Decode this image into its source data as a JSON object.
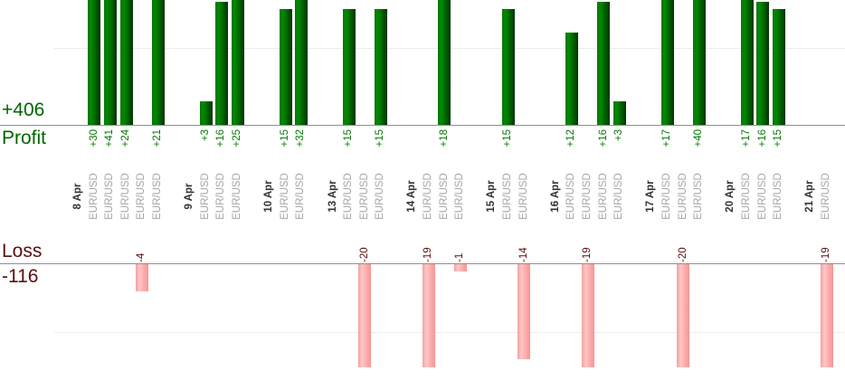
{
  "page": {
    "profit_total": "+406",
    "profit_axis_title": "Profit",
    "loss_axis_title": "Loss",
    "loss_total": "-116"
  },
  "chart_data": {
    "type": "bar",
    "title": "",
    "description": "Per-trade results grouped by date: profit bars (green) grow up from the Profit axis, loss bars (pink) grow down from the Loss axis",
    "symbol_label": "EUR/USD",
    "legend": "none",
    "grid": "faint horizontal gridline at value 10 in each panel",
    "profit_panel": {
      "axis_label": "Profit",
      "total": 406,
      "total_label": "+406",
      "bar_color_hex": "#006f00",
      "text_color_hex": "#007a00"
    },
    "loss_panel": {
      "axis_label": "Loss",
      "total": -116,
      "total_label": "-116",
      "bar_color_hex": "#f9a8a8",
      "text_color_hex": "#5a0f0f"
    },
    "categories": [
      "8 Apr",
      "9 Apr",
      "10 Apr",
      "13 Apr",
      "14 Apr",
      "15 Apr",
      "16 Apr",
      "17 Apr",
      "20 Apr",
      "21 Apr"
    ],
    "groups": [
      {
        "date": "8 Apr",
        "trades": [
          {
            "symbol": "EUR/USD",
            "value": 30,
            "label": "+30"
          },
          {
            "symbol": "EUR/USD",
            "value": 41,
            "label": "+41"
          },
          {
            "symbol": "EUR/USD",
            "value": 24,
            "label": "+24"
          },
          {
            "symbol": "EUR/USD",
            "value": -4,
            "label": "-4"
          },
          {
            "symbol": "EUR/USD",
            "value": 21,
            "label": "+21"
          }
        ]
      },
      {
        "date": "9 Apr",
        "trades": [
          {
            "symbol": "EUR/USD",
            "value": 3,
            "label": "+3"
          },
          {
            "symbol": "EUR/USD",
            "value": 16,
            "label": "+16"
          },
          {
            "symbol": "EUR/USD",
            "value": 25,
            "label": "+25"
          }
        ]
      },
      {
        "date": "10 Apr",
        "trades": [
          {
            "symbol": "EUR/USD",
            "value": 15,
            "label": "+15"
          },
          {
            "symbol": "EUR/USD",
            "value": 32,
            "label": "+32"
          }
        ]
      },
      {
        "date": "13 Apr",
        "trades": [
          {
            "symbol": "EUR/USD",
            "value": 15,
            "label": "+15"
          },
          {
            "symbol": "EUR/USD",
            "value": -20,
            "label": "-20"
          },
          {
            "symbol": "EUR/USD",
            "value": 15,
            "label": "+15"
          }
        ]
      },
      {
        "date": "14 Apr",
        "trades": [
          {
            "symbol": "EUR/USD",
            "value": -19,
            "label": "-19"
          },
          {
            "symbol": "EUR/USD",
            "value": 18,
            "label": "+18"
          },
          {
            "symbol": "EUR/USD",
            "value": -1,
            "label": "-1"
          }
        ]
      },
      {
        "date": "15 Apr",
        "trades": [
          {
            "symbol": "EUR/USD",
            "value": 15,
            "label": "+15"
          },
          {
            "symbol": "EUR/USD",
            "value": -14,
            "label": "-14"
          }
        ]
      },
      {
        "date": "16 Apr",
        "trades": [
          {
            "symbol": "EUR/USD",
            "value": 12,
            "label": "+12"
          },
          {
            "symbol": "EUR/USD",
            "value": -19,
            "label": "-19"
          },
          {
            "symbol": "EUR/USD",
            "value": 16,
            "label": "+16"
          },
          {
            "symbol": "EUR/USD",
            "value": 3,
            "label": "+3"
          }
        ]
      },
      {
        "date": "17 Apr",
        "trades": [
          {
            "symbol": "EUR/USD",
            "value": 17,
            "label": "+17"
          },
          {
            "symbol": "EUR/USD",
            "value": -20,
            "label": "-20"
          },
          {
            "symbol": "EUR/USD",
            "value": 40,
            "label": "+40"
          }
        ]
      },
      {
        "date": "20 Apr",
        "trades": [
          {
            "symbol": "EUR/USD",
            "value": 17,
            "label": "+17"
          },
          {
            "symbol": "EUR/USD",
            "value": 16,
            "label": "+16"
          },
          {
            "symbol": "EUR/USD",
            "value": 15,
            "label": "+15"
          }
        ]
      },
      {
        "date": "21 Apr",
        "trades": [
          {
            "symbol": "EUR/USD",
            "value": -19,
            "label": "-19"
          }
        ]
      }
    ],
    "colors": {
      "profit_text": "#006600",
      "profit_bar_gradient": [
        "#077507",
        "#008a00",
        "#0a330a"
      ],
      "loss_text": "#5a0f0f",
      "loss_bar_gradient": [
        "#f2a2a2",
        "#ffc6c6",
        "#f79595"
      ],
      "date_text": "#333333",
      "symbol_text": "#a6a6a6",
      "axis_line": "#8f8f8f",
      "gridline": "#ececec"
    }
  }
}
